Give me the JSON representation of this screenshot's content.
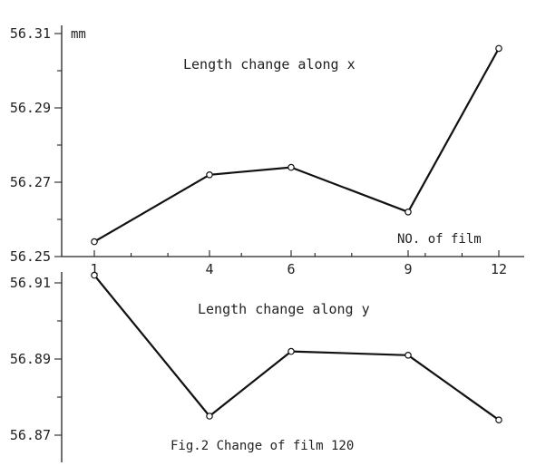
{
  "chart_data": [
    {
      "type": "line",
      "title": "Length change along x",
      "ylabel": "mm",
      "xlabel": "NO. of film",
      "x": [
        1,
        4,
        6,
        9,
        12
      ],
      "values": [
        56.254,
        56.272,
        56.274,
        56.262,
        56.306
      ],
      "ylim": [
        56.25,
        56.315
      ],
      "yticks": [
        56.25,
        56.27,
        56.29,
        56.31
      ],
      "ytick_labels": [
        "56.25",
        "56.27",
        "56.29",
        "56.31"
      ],
      "xticks": [
        1,
        4,
        6,
        9,
        12
      ],
      "xtick_labels": [
        "1",
        "4",
        "6",
        "9",
        "12"
      ],
      "grid": false
    },
    {
      "type": "line",
      "title": "Length change along y",
      "x": [
        1,
        4,
        6,
        9,
        12
      ],
      "values": [
        56.912,
        56.875,
        56.892,
        56.891,
        56.874
      ],
      "ylim": [
        56.865,
        56.915
      ],
      "yticks": [
        56.87,
        56.89,
        56.91
      ],
      "ytick_labels": [
        "56.87",
        "56.89",
        "56.91"
      ],
      "grid": false
    }
  ],
  "caption": "Fig.2 Change of film 120"
}
